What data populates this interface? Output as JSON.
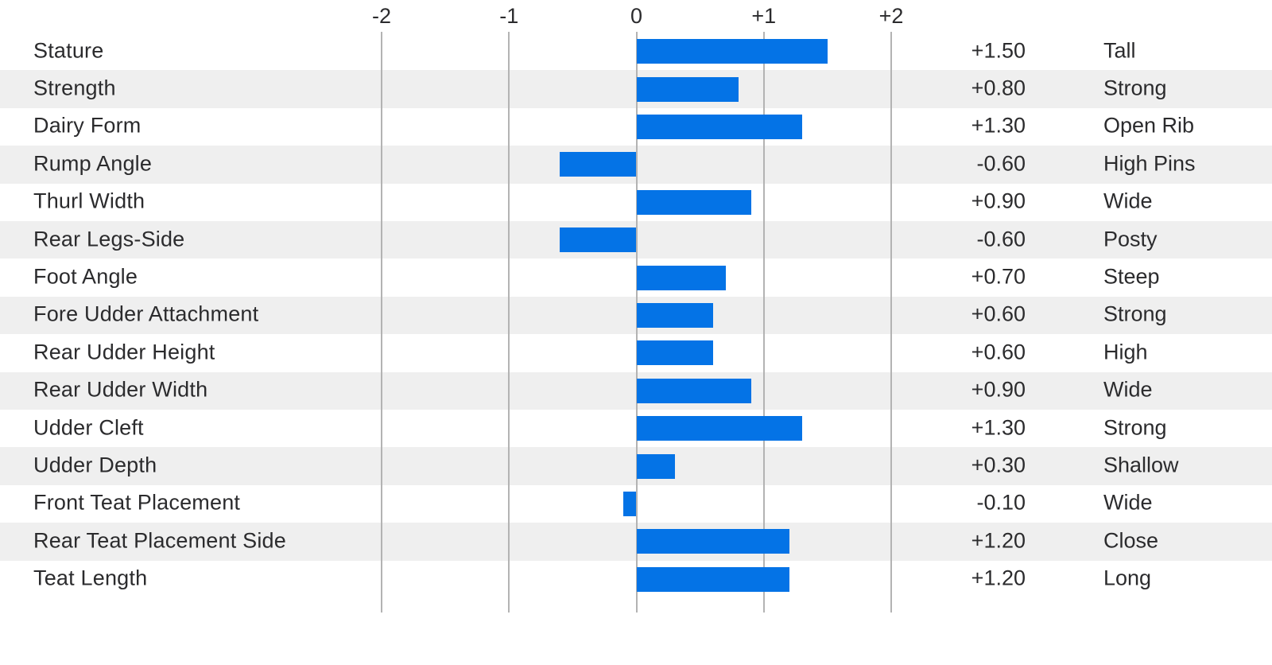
{
  "colors": {
    "bar": "#0473e6",
    "zebra_row": "#efefef",
    "gridline": "#b3b3b3",
    "text": "#2b2b2d",
    "background": "#ffffff"
  },
  "chart_data": {
    "type": "bar",
    "orientation": "horizontal",
    "title": "",
    "xlabel": "",
    "ylabel": "",
    "grid": true,
    "legend": false,
    "axis_range": [
      -2,
      2
    ],
    "ticks": [
      {
        "label": "-2",
        "value": -2
      },
      {
        "label": "-1",
        "value": -1
      },
      {
        "label": "0",
        "value": 0
      },
      {
        "label": "+1",
        "value": 1
      },
      {
        "label": "+2",
        "value": 2
      }
    ],
    "rows": [
      {
        "trait": "Stature",
        "value": 1.5,
        "value_label": "+1.50",
        "descriptor": "Tall"
      },
      {
        "trait": "Strength",
        "value": 0.8,
        "value_label": "+0.80",
        "descriptor": "Strong"
      },
      {
        "trait": "Dairy Form",
        "value": 1.3,
        "value_label": "+1.30",
        "descriptor": "Open Rib"
      },
      {
        "trait": "Rump Angle",
        "value": -0.6,
        "value_label": "-0.60",
        "descriptor": "High Pins"
      },
      {
        "trait": "Thurl Width",
        "value": 0.9,
        "value_label": "+0.90",
        "descriptor": "Wide"
      },
      {
        "trait": "Rear Legs-Side",
        "value": -0.6,
        "value_label": "-0.60",
        "descriptor": "Posty"
      },
      {
        "trait": "Foot Angle",
        "value": 0.7,
        "value_label": "+0.70",
        "descriptor": "Steep"
      },
      {
        "trait": "Fore Udder Attachment",
        "value": 0.6,
        "value_label": "+0.60",
        "descriptor": "Strong"
      },
      {
        "trait": "Rear Udder Height",
        "value": 0.6,
        "value_label": "+0.60",
        "descriptor": "High"
      },
      {
        "trait": "Rear Udder Width",
        "value": 0.9,
        "value_label": "+0.90",
        "descriptor": "Wide"
      },
      {
        "trait": "Udder Cleft",
        "value": 1.3,
        "value_label": "+1.30",
        "descriptor": "Strong"
      },
      {
        "trait": "Udder Depth",
        "value": 0.3,
        "value_label": "+0.30",
        "descriptor": "Shallow"
      },
      {
        "trait": "Front Teat Placement",
        "value": -0.1,
        "value_label": "-0.10",
        "descriptor": "Wide"
      },
      {
        "trait": "Rear Teat Placement Side",
        "value": 1.2,
        "value_label": "+1.20",
        "descriptor": "Close"
      },
      {
        "trait": "Teat Length",
        "value": 1.2,
        "value_label": "+1.20",
        "descriptor": "Long"
      }
    ]
  }
}
